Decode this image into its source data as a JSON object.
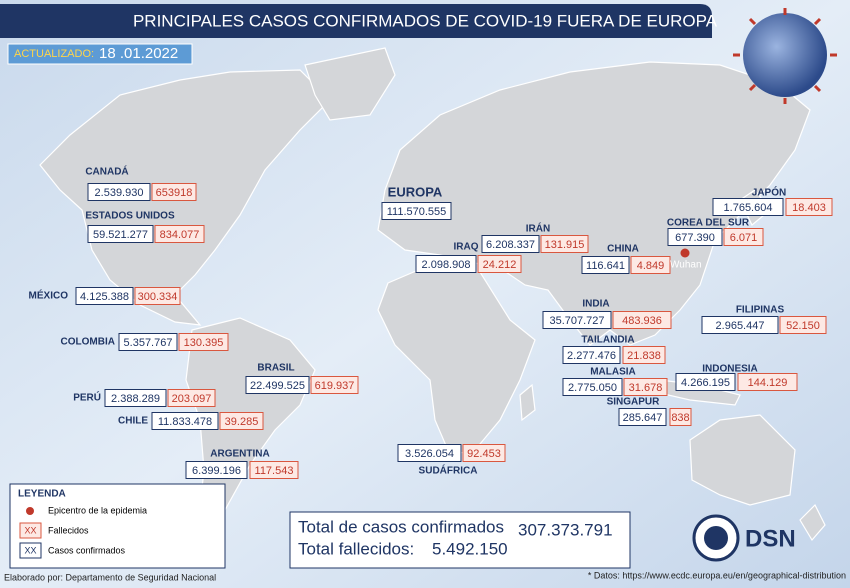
{
  "header": {
    "title": "PRINCIPALES CASOS CONFIRMADOS DE COVID-19 FUERA DE EUROPA",
    "updated_label": "ACTUALIZADO:",
    "updated_date": "18 .01.2022"
  },
  "regions": [
    {
      "name": "CANADÁ",
      "cases": "2.539.930",
      "deaths": "653918"
    },
    {
      "name": "ESTADOS UNIDOS",
      "cases": "59.521.277",
      "deaths": "834.077"
    },
    {
      "name": "MÉXICO",
      "cases": "4.125.388",
      "deaths": "300.334"
    },
    {
      "name": "COLOMBIA",
      "cases": "5.357.767",
      "deaths": "130.395"
    },
    {
      "name": "BRASIL",
      "cases": "22.499.525",
      "deaths": "619.937"
    },
    {
      "name": "PERÚ",
      "cases": "2.388.289",
      "deaths": "203.097"
    },
    {
      "name": "CHILE",
      "cases": "11.833.478",
      "deaths": "39.285"
    },
    {
      "name": "ARGENTINA",
      "cases": "6.399.196",
      "deaths": "117.543"
    },
    {
      "name": "EUROPA",
      "cases": "111.570.555"
    },
    {
      "name": "IRÁN",
      "cases": "6.208.337",
      "deaths": "131.915"
    },
    {
      "name": "IRAQ",
      "cases": "2.098.908",
      "deaths": "24.212"
    },
    {
      "name": "CHINA",
      "cases": "116.641",
      "deaths": "4.849"
    },
    {
      "name": "JAPÓN",
      "cases": "1.765.604",
      "deaths": "18.403"
    },
    {
      "name": "COREA DEL SUR",
      "cases": "677.390",
      "deaths": "6.071"
    },
    {
      "name": "INDIA",
      "cases": "35.707.727",
      "deaths": "483.936"
    },
    {
      "name": "FILIPINAS",
      "cases": "2.965.447",
      "deaths": "52.150"
    },
    {
      "name": "TAILANDIA",
      "cases": "2.277.476",
      "deaths": "21.838"
    },
    {
      "name": "MALASIA",
      "cases": "2.775.050",
      "deaths": "31.678"
    },
    {
      "name": "INDONESIA",
      "cases": "4.266.195",
      "deaths": "144.129"
    },
    {
      "name": "SINGAPUR",
      "cases": "285.647",
      "deaths": "838"
    },
    {
      "name": "SUDÁFRICA",
      "cases": "3.526.054",
      "deaths": "92.453"
    }
  ],
  "epicenter": {
    "label": "Wuhan"
  },
  "legend": {
    "title": "LEYENDA",
    "items": [
      {
        "label": "Epicentro de la epidemia"
      },
      {
        "symbol": "XX",
        "label": "Fallecidos"
      },
      {
        "symbol": "XX",
        "label": "Casos confirmados"
      }
    ]
  },
  "totals": {
    "cases_label": "Total de casos confirmados",
    "cases": "307.373.791",
    "deaths_label": "Total fallecidos:",
    "deaths": "5.492.150"
  },
  "logo": {
    "text": "DSN"
  },
  "footer": {
    "credit": "Elaborado por: Departamento de Seguridad Nacional",
    "source": "* Datos: https://www.ecdc.europa.eu/en/geographical-distribution"
  }
}
